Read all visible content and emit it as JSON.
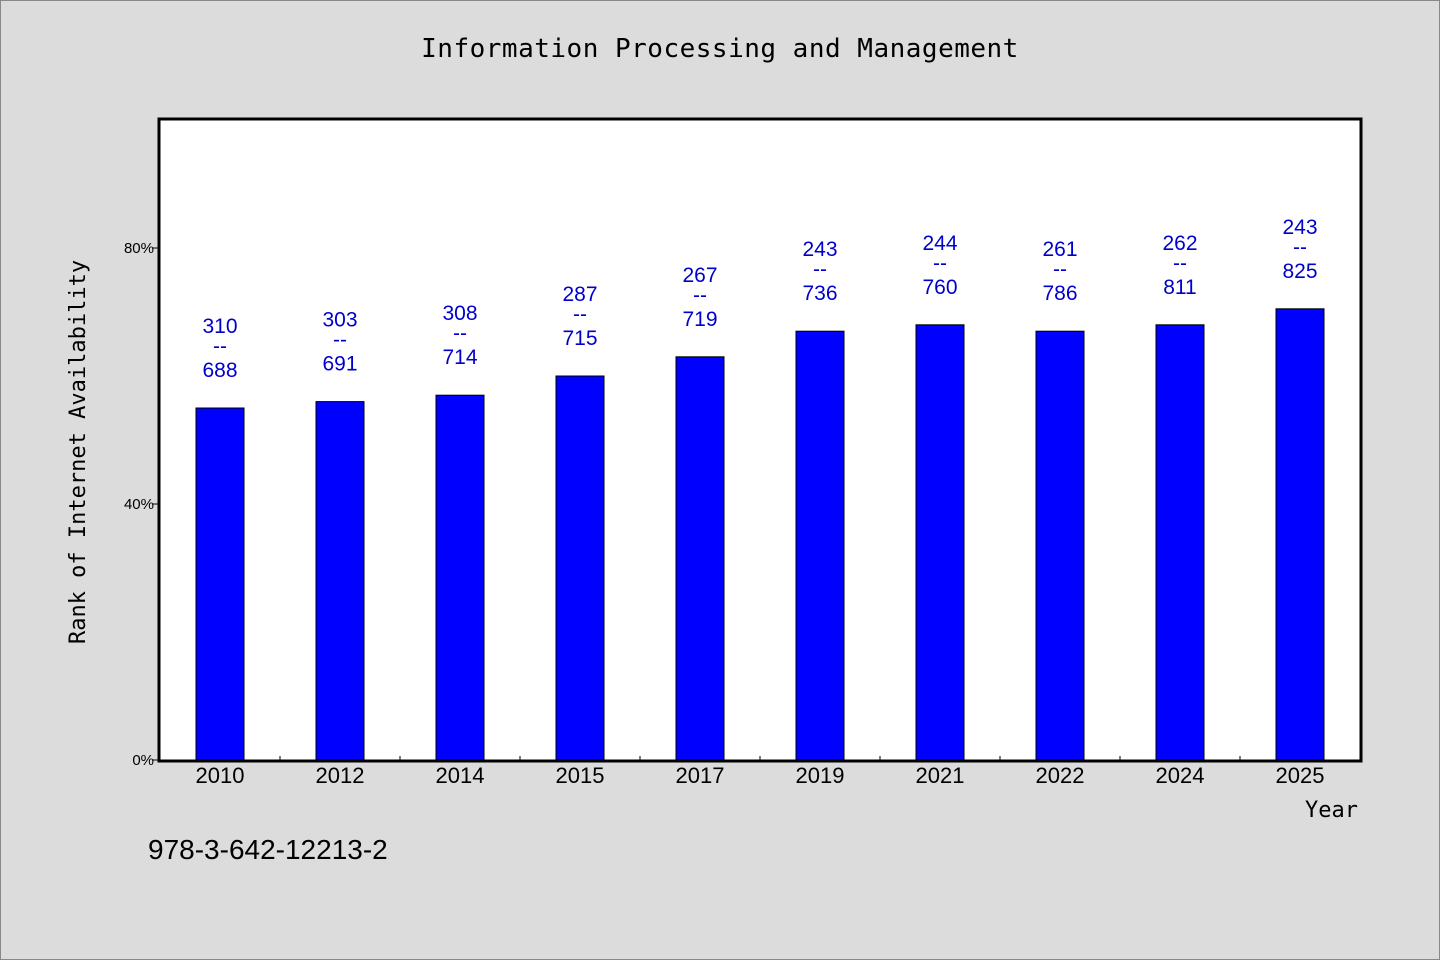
{
  "header": {
    "title": "Information Processing and Management"
  },
  "footer": {
    "isbn": "978-3-642-12213-2"
  },
  "colors": {
    "bar": "#0000ff",
    "data_label": "#0000cc",
    "background": "#dcdcdc",
    "plot_background": "#ffffff"
  },
  "chart_data": {
    "type": "bar",
    "title": "Information Processing and Management",
    "xlabel": "Year",
    "ylabel": "Rank of Internet Availability",
    "categories": [
      "2010",
      "2012",
      "2014",
      "2015",
      "2017",
      "2019",
      "2021",
      "2022",
      "2024",
      "2025"
    ],
    "values": [
      55,
      56,
      57,
      60,
      63,
      67,
      68,
      67,
      68,
      70.5
    ],
    "unit": "%",
    "ylim": [
      0,
      100
    ],
    "yticks": [
      {
        "value": 0,
        "label": "0%"
      },
      {
        "value": 40,
        "label": "40%"
      },
      {
        "value": 80,
        "label": "80%"
      }
    ],
    "data_labels": [
      {
        "top": "310",
        "sep": "--",
        "bottom": "688"
      },
      {
        "top": "303",
        "sep": "--",
        "bottom": "691"
      },
      {
        "top": "308",
        "sep": "--",
        "bottom": "714"
      },
      {
        "top": "287",
        "sep": "--",
        "bottom": "715"
      },
      {
        "top": "267",
        "sep": "--",
        "bottom": "719"
      },
      {
        "top": "243",
        "sep": "--",
        "bottom": "736"
      },
      {
        "top": "244",
        "sep": "--",
        "bottom": "760"
      },
      {
        "top": "261",
        "sep": "--",
        "bottom": "786"
      },
      {
        "top": "262",
        "sep": "--",
        "bottom": "811"
      },
      {
        "top": "243",
        "sep": "--",
        "bottom": "825"
      }
    ],
    "grid": false,
    "legend": "none"
  }
}
